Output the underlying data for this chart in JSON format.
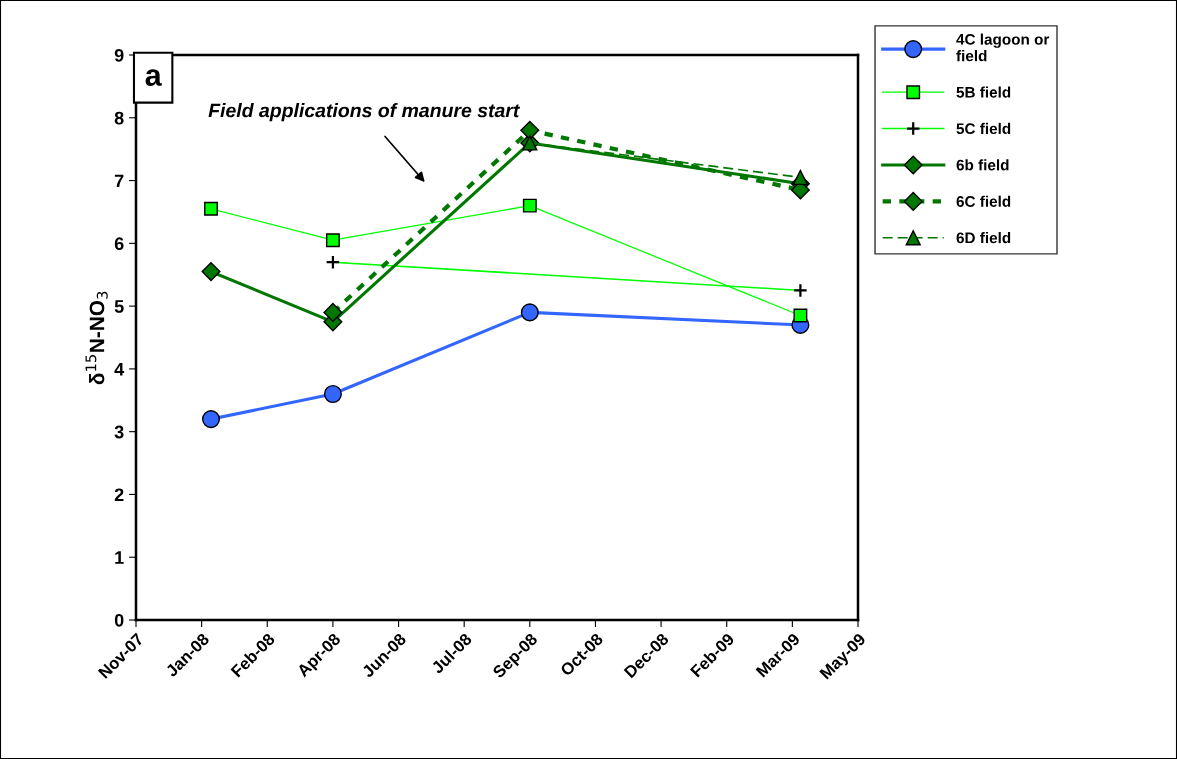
{
  "chart_data": {
    "type": "line",
    "ylabel": "δ$^{15}$N-NO$_{3}$",
    "x": [
      "2008-01-15",
      "2008-04-15",
      "2008-09-09",
      "2009-03-30"
    ],
    "xlim": [
      "2007-11-20",
      "2009-05-12"
    ],
    "xticks": [
      {
        "value": "2007-11-20",
        "label": "Nov-07"
      },
      {
        "value": "2008-01-08",
        "label": "Jan-08"
      },
      {
        "value": "2008-02-26",
        "label": "Feb-08"
      },
      {
        "value": "2008-04-15",
        "label": "Apr-08"
      },
      {
        "value": "2008-06-03",
        "label": "Jun-08"
      },
      {
        "value": "2008-07-22",
        "label": "Jul-08"
      },
      {
        "value": "2008-09-09",
        "label": "Sep-08"
      },
      {
        "value": "2008-10-28",
        "label": "Oct-08"
      },
      {
        "value": "2008-12-16",
        "label": "Dec-08"
      },
      {
        "value": "2009-02-03",
        "label": "Feb-09"
      },
      {
        "value": "2009-03-24",
        "label": "Mar-09"
      },
      {
        "value": "2009-05-12",
        "label": "May-09"
      }
    ],
    "ylim": [
      0,
      9
    ],
    "yticks": [
      0,
      1,
      2,
      3,
      4,
      5,
      6,
      7,
      8,
      9
    ],
    "grid": false,
    "legend": "top right",
    "series": [
      {
        "name": "4C lagoon or field",
        "color": "#3366ff",
        "marker": "circle",
        "line_style": "solid",
        "values": [
          3.2,
          3.6,
          4.9,
          4.7
        ]
      },
      {
        "name": "5B field",
        "color": "#00ff00",
        "marker": "square",
        "line_style": "solid",
        "values": [
          6.55,
          6.05,
          6.6,
          4.85
        ]
      },
      {
        "name": "5C field",
        "color": "#00ff00",
        "marker": "cross",
        "line_style": "solid",
        "values": [
          null,
          5.7,
          null,
          5.25
        ]
      },
      {
        "name": "6b field",
        "color": "#007700",
        "marker": "diamond",
        "line_style": "solid",
        "values": [
          5.55,
          4.75,
          7.6,
          6.95
        ]
      },
      {
        "name": "6C field",
        "color": "#007700",
        "marker": "diamond",
        "line_style": "dotted",
        "values": [
          null,
          4.9,
          7.8,
          6.85
        ]
      },
      {
        "name": "6D field",
        "color": "#007700",
        "marker": "triangle",
        "line_style": "dashed",
        "values": [
          null,
          null,
          7.6,
          7.05
        ]
      }
    ],
    "annotations": [
      "a",
      "Field applications of manure start"
    ]
  }
}
